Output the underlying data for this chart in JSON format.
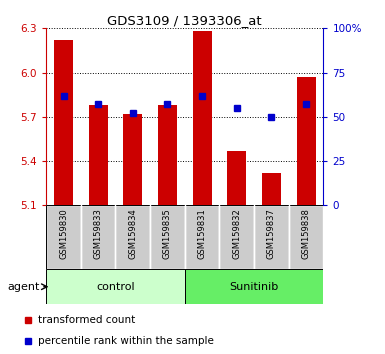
{
  "title": "GDS3109 / 1393306_at",
  "samples": [
    "GSM159830",
    "GSM159833",
    "GSM159834",
    "GSM159835",
    "GSM159831",
    "GSM159832",
    "GSM159837",
    "GSM159838"
  ],
  "red_values": [
    6.22,
    5.78,
    5.72,
    5.78,
    6.28,
    5.47,
    5.32,
    5.97
  ],
  "blue_pct": [
    62,
    57,
    52,
    57,
    62,
    55,
    50,
    57
  ],
  "groups": [
    {
      "label": "control",
      "indices": [
        0,
        1,
        2,
        3
      ],
      "color": "#ccffcc"
    },
    {
      "label": "Sunitinib",
      "indices": [
        4,
        5,
        6,
        7
      ],
      "color": "#66ee66"
    }
  ],
  "ylim": [
    5.1,
    6.3
  ],
  "yticks_left": [
    5.1,
    5.4,
    5.7,
    6.0,
    6.3
  ],
  "yticks_right_vals": [
    0,
    25,
    50,
    75,
    100
  ],
  "yticks_right_labels": [
    "0",
    "25",
    "50",
    "75",
    "100%"
  ],
  "left_color": "#cc0000",
  "right_color": "#0000cc",
  "bar_color": "#cc0000",
  "blue_color": "#0000cc",
  "bar_width": 0.55,
  "blue_marker_size": 5,
  "group_label": "agent",
  "legend_red": "transformed count",
  "legend_blue": "percentile rank within the sample",
  "tick_bg": "#cccccc"
}
